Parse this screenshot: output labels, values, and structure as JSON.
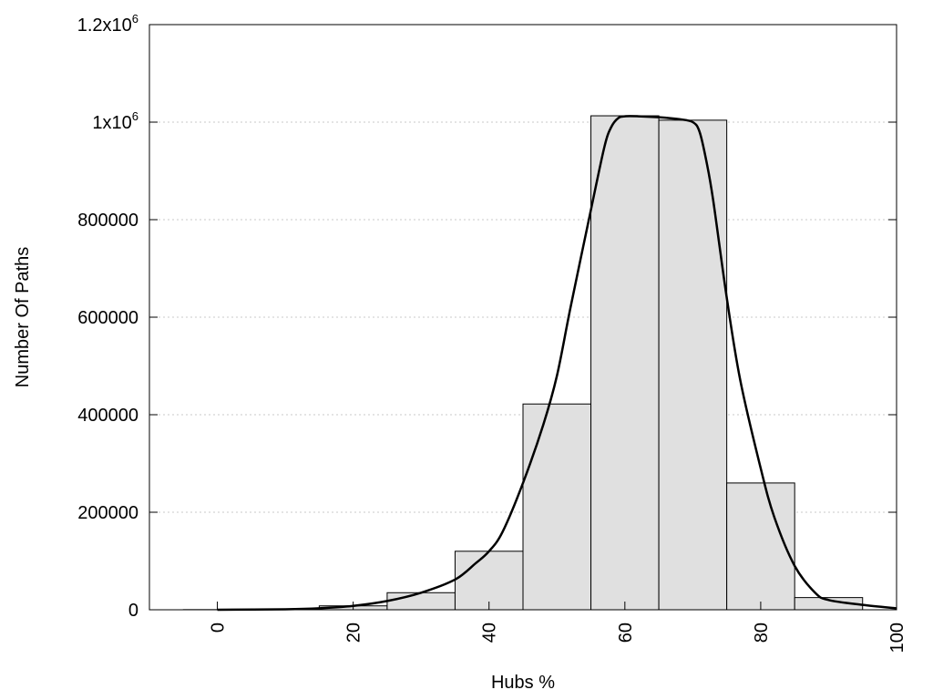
{
  "chart_data": {
    "type": "bar",
    "title": "",
    "xlabel": "Hubs %",
    "ylabel": "Number Of Paths",
    "xlim": [
      -10,
      100
    ],
    "ylim": [
      0,
      1200000
    ],
    "grid": true,
    "x_ticks": [
      0,
      20,
      40,
      60,
      80,
      100
    ],
    "x_tick_labels": [
      "0",
      "20",
      "40",
      "60",
      "80",
      "100"
    ],
    "y_ticks": [
      0,
      200000,
      400000,
      600000,
      800000,
      1000000,
      1200000
    ],
    "y_tick_labels": [
      {
        "base": "0",
        "sup": ""
      },
      {
        "base": "200000",
        "sup": ""
      },
      {
        "base": "400000",
        "sup": ""
      },
      {
        "base": "600000",
        "sup": ""
      },
      {
        "base": "800000",
        "sup": ""
      },
      {
        "base": "1x10",
        "sup": "6"
      },
      {
        "base": "1.2x10",
        "sup": "6"
      }
    ],
    "bins": [
      {
        "from": -5,
        "to": 5,
        "value": 300
      },
      {
        "from": 5,
        "to": 15,
        "value": 1000
      },
      {
        "from": 15,
        "to": 25,
        "value": 8000
      },
      {
        "from": 25,
        "to": 35,
        "value": 35000
      },
      {
        "from": 35,
        "to": 45,
        "value": 120000
      },
      {
        "from": 45,
        "to": 55,
        "value": 422000
      },
      {
        "from": 55,
        "to": 65,
        "value": 1013000
      },
      {
        "from": 65,
        "to": 75,
        "value": 1004000
      },
      {
        "from": 75,
        "to": 85,
        "value": 260000
      },
      {
        "from": 85,
        "to": 95,
        "value": 25000
      }
    ],
    "curve": {
      "x": [
        0,
        10,
        15,
        20,
        25,
        30,
        35,
        38,
        40,
        42,
        45,
        48,
        50,
        52,
        55,
        57,
        58,
        59,
        60,
        62,
        65,
        68,
        70,
        71,
        72,
        73,
        75,
        77,
        80,
        82,
        85,
        88,
        90,
        95,
        100
      ],
      "y": [
        0,
        1000,
        3000,
        8000,
        18000,
        35000,
        62000,
        95000,
        120000,
        160000,
        260000,
        380000,
        480000,
        620000,
        820000,
        950000,
        990000,
        1008000,
        1012000,
        1012000,
        1010000,
        1006000,
        1000000,
        980000,
        920000,
        840000,
        640000,
        470000,
        290000,
        190000,
        90000,
        35000,
        20000,
        10000,
        3000
      ]
    }
  }
}
